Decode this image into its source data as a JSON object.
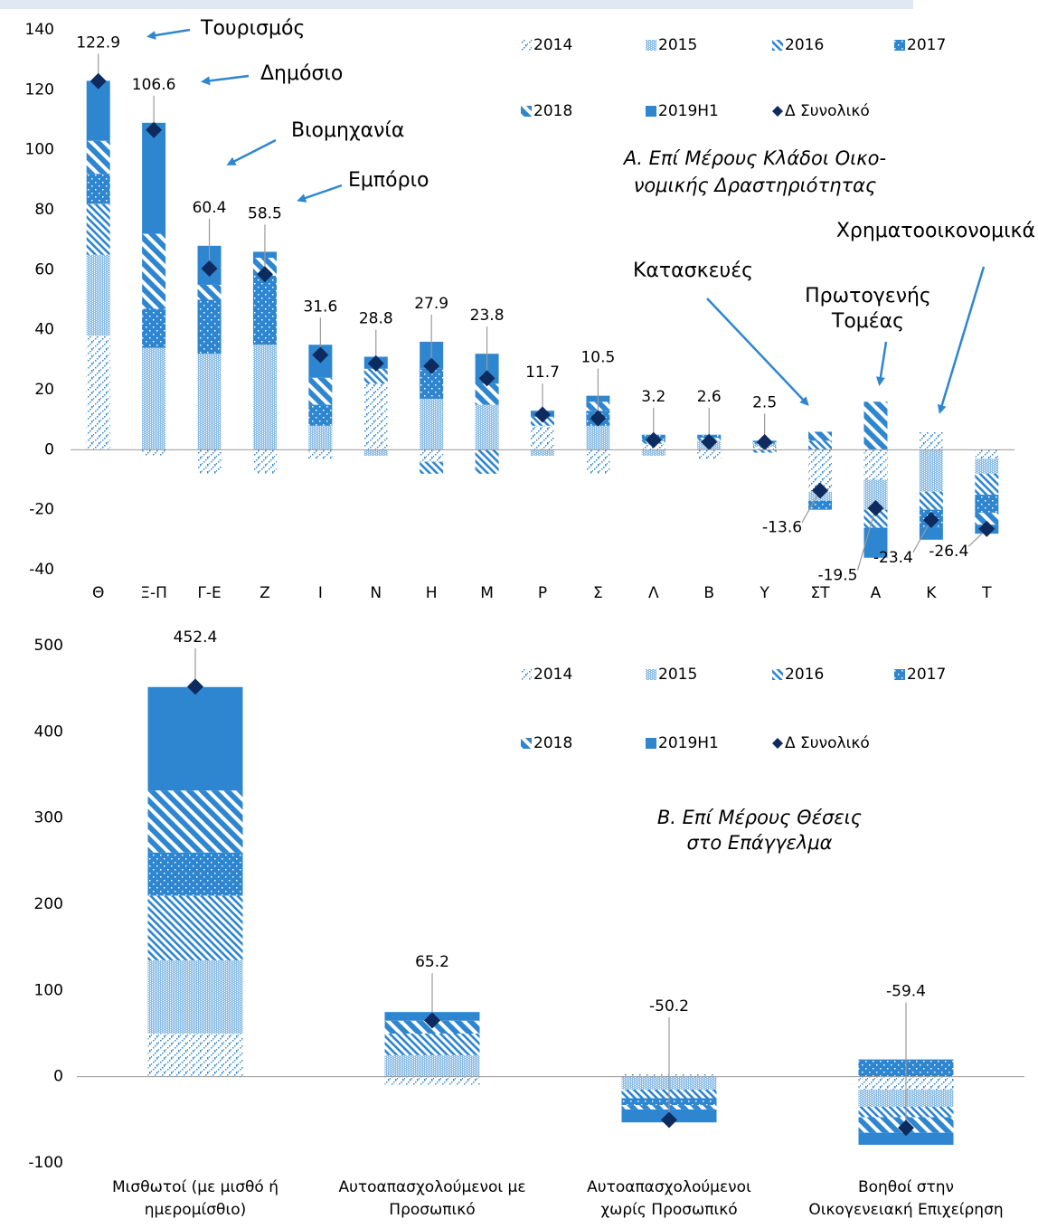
{
  "chart_data": [
    {
      "type": "bar",
      "stacked": true,
      "subtitle": [
        "Α. Επί Μέρους Κλάδοι Οικο-",
        "νομικής Δραστηριότητας"
      ],
      "categories": [
        "Θ",
        "Ξ-Π",
        "Γ-Ε",
        "Ζ",
        "Ι",
        "Ν",
        "Η",
        "Μ",
        "Ρ",
        "Σ",
        "Λ",
        "Β",
        "Υ",
        "ΣΤ",
        "Α",
        "Κ",
        "Τ"
      ],
      "series": [
        {
          "name": "2014",
          "color": "#2e86d0",
          "values": [
            38,
            -2,
            -8,
            -8,
            -3,
            22,
            -4,
            0,
            8,
            -8,
            2,
            -3,
            1,
            -14,
            -10,
            6,
            -3
          ]
        },
        {
          "name": "2015",
          "color": "#2e86d0",
          "values": [
            27,
            34,
            32,
            35,
            8,
            -2,
            17,
            15,
            -2,
            8,
            -2,
            3,
            1,
            -3,
            -10,
            -14,
            -5
          ]
        },
        {
          "name": "2016",
          "color": "#2e86d0",
          "values": [
            17,
            0,
            0,
            0,
            0,
            5,
            -4,
            -8,
            3,
            0,
            1,
            1,
            -1,
            3,
            -6,
            -6,
            -7
          ]
        },
        {
          "name": "2017",
          "color": "#2e86d0",
          "values": [
            10,
            13,
            18,
            23,
            7,
            0,
            10,
            0,
            0,
            5,
            2,
            1,
            1,
            -3,
            0,
            -6,
            -6
          ]
        },
        {
          "name": "2018",
          "color": "#2e86d0",
          "values": [
            11,
            25,
            5,
            6,
            9,
            0,
            0,
            7,
            0,
            3,
            0,
            0,
            0,
            3,
            16,
            0,
            -4
          ]
        },
        {
          "name": "2019H1",
          "color": "#2e86d0",
          "values": [
            20,
            37,
            13,
            2,
            11,
            4,
            9,
            10,
            2,
            2,
            0,
            0,
            0,
            0,
            -10,
            -4,
            -3
          ]
        }
      ],
      "totals": {
        "name": "Δ Συνολικό",
        "color": "#0d2b5e",
        "values": [
          122.9,
          106.6,
          60.4,
          58.5,
          31.6,
          28.8,
          27.9,
          23.8,
          11.7,
          10.5,
          3.2,
          2.6,
          2.5,
          -13.6,
          -19.5,
          -23.4,
          -26.4
        ]
      },
      "annotations": [
        "Τουρισμός",
        "Δημόσιο",
        "Βιομηχανία",
        "Εμπόριο",
        "Κατασκευές",
        [
          "Πρωτογενής",
          "Τομέας"
        ],
        "Χρηματοοικονομικά"
      ],
      "ylim": [
        -40,
        140
      ],
      "yticks": [
        -40,
        -20,
        0,
        20,
        40,
        60,
        80,
        100,
        120,
        140
      ],
      "grid": false
    },
    {
      "type": "bar",
      "stacked": true,
      "subtitle": [
        "Β. Επί Μέρους Θέσεις",
        "στο Επάγγελμα"
      ],
      "categories": [
        [
          "Μισθωτοί (με μισθό ή",
          "ημερομίσθιο)"
        ],
        [
          "Αυτοαπασχολούμενοι με",
          "Προσωπικό"
        ],
        [
          "Αυτοαπασχολούμενοι",
          "χωρίς Προσωπικό"
        ],
        [
          "Βοηθοί στην",
          "Οικογενειακή Επιχείρηση"
        ]
      ],
      "series": [
        {
          "name": "2014",
          "color": "#2e86d0",
          "values": [
            50,
            -10,
            3,
            -15
          ]
        },
        {
          "name": "2015",
          "color": "#2e86d0",
          "values": [
            85,
            25,
            -15,
            -20
          ]
        },
        {
          "name": "2016",
          "color": "#2e86d0",
          "values": [
            75,
            25,
            -10,
            -12
          ]
        },
        {
          "name": "2017",
          "color": "#2e86d0",
          "values": [
            50,
            0,
            -8,
            20
          ]
        },
        {
          "name": "2018",
          "color": "#2e86d0",
          "values": [
            72,
            15,
            -5,
            -18
          ]
        },
        {
          "name": "2019H1",
          "color": "#2e86d0",
          "values": [
            120,
            10,
            -15,
            -14
          ]
        }
      ],
      "totals": {
        "name": "Δ Συνολικό",
        "color": "#0d2b5e",
        "values": [
          452.4,
          65.2,
          -50.2,
          -59.4
        ]
      },
      "ylim": [
        -100,
        500
      ],
      "yticks": [
        -100,
        0,
        100,
        200,
        300,
        400,
        500
      ],
      "grid": false
    }
  ]
}
